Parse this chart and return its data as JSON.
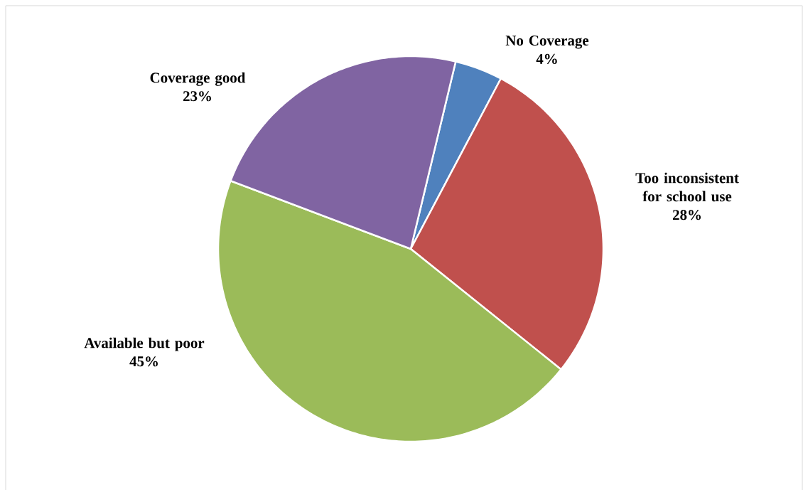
{
  "chart_data": {
    "type": "pie",
    "categories": [
      "No Coverage",
      "Too inconsistent for school use",
      "Available but poor",
      "Coverage good"
    ],
    "values": [
      4,
      28,
      45,
      23
    ],
    "value_labels": [
      "4%",
      "28%",
      "45%",
      "23%"
    ],
    "colors": [
      "#4f81bd",
      "#c0504d",
      "#9bbb59",
      "#8064a2"
    ]
  }
}
